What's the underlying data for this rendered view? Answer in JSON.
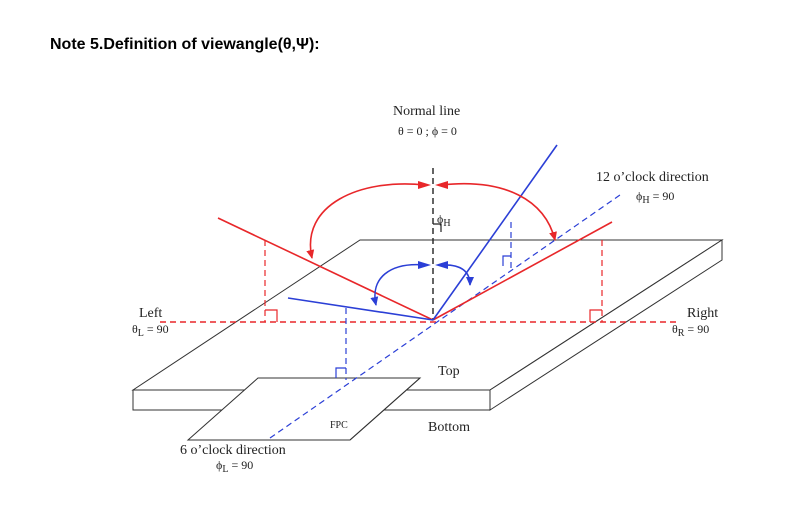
{
  "title": "Note 5.Definition of viewangle(θ,Ψ):",
  "labels": {
    "normal_line": "Normal line",
    "normal_eq": "θ = 0 ; ϕ = 0",
    "phi_h": "ϕ",
    "phi_h_sub": "H",
    "twelve": "12 o’clock direction",
    "twelve_eq": "ϕ",
    "twelve_eq_sub": "H",
    "twelve_eq_val": " = 90",
    "left": "Left",
    "left_eq": "θ",
    "left_eq_sub": "L",
    "left_eq_val": " = 90",
    "right": "Right",
    "right_eq": "θ",
    "right_eq_sub": "R",
    "right_eq_val": " = 90",
    "top": "Top",
    "bottom": "Bottom",
    "fpc": "FPC",
    "six": "6 o’clock direction",
    "six_eq": "ϕ",
    "six_eq_sub": "L",
    "six_eq_val": " = 90"
  },
  "colors": {
    "red": "#e8272a",
    "blue": "#2b3fd6",
    "ink": "#333333"
  }
}
